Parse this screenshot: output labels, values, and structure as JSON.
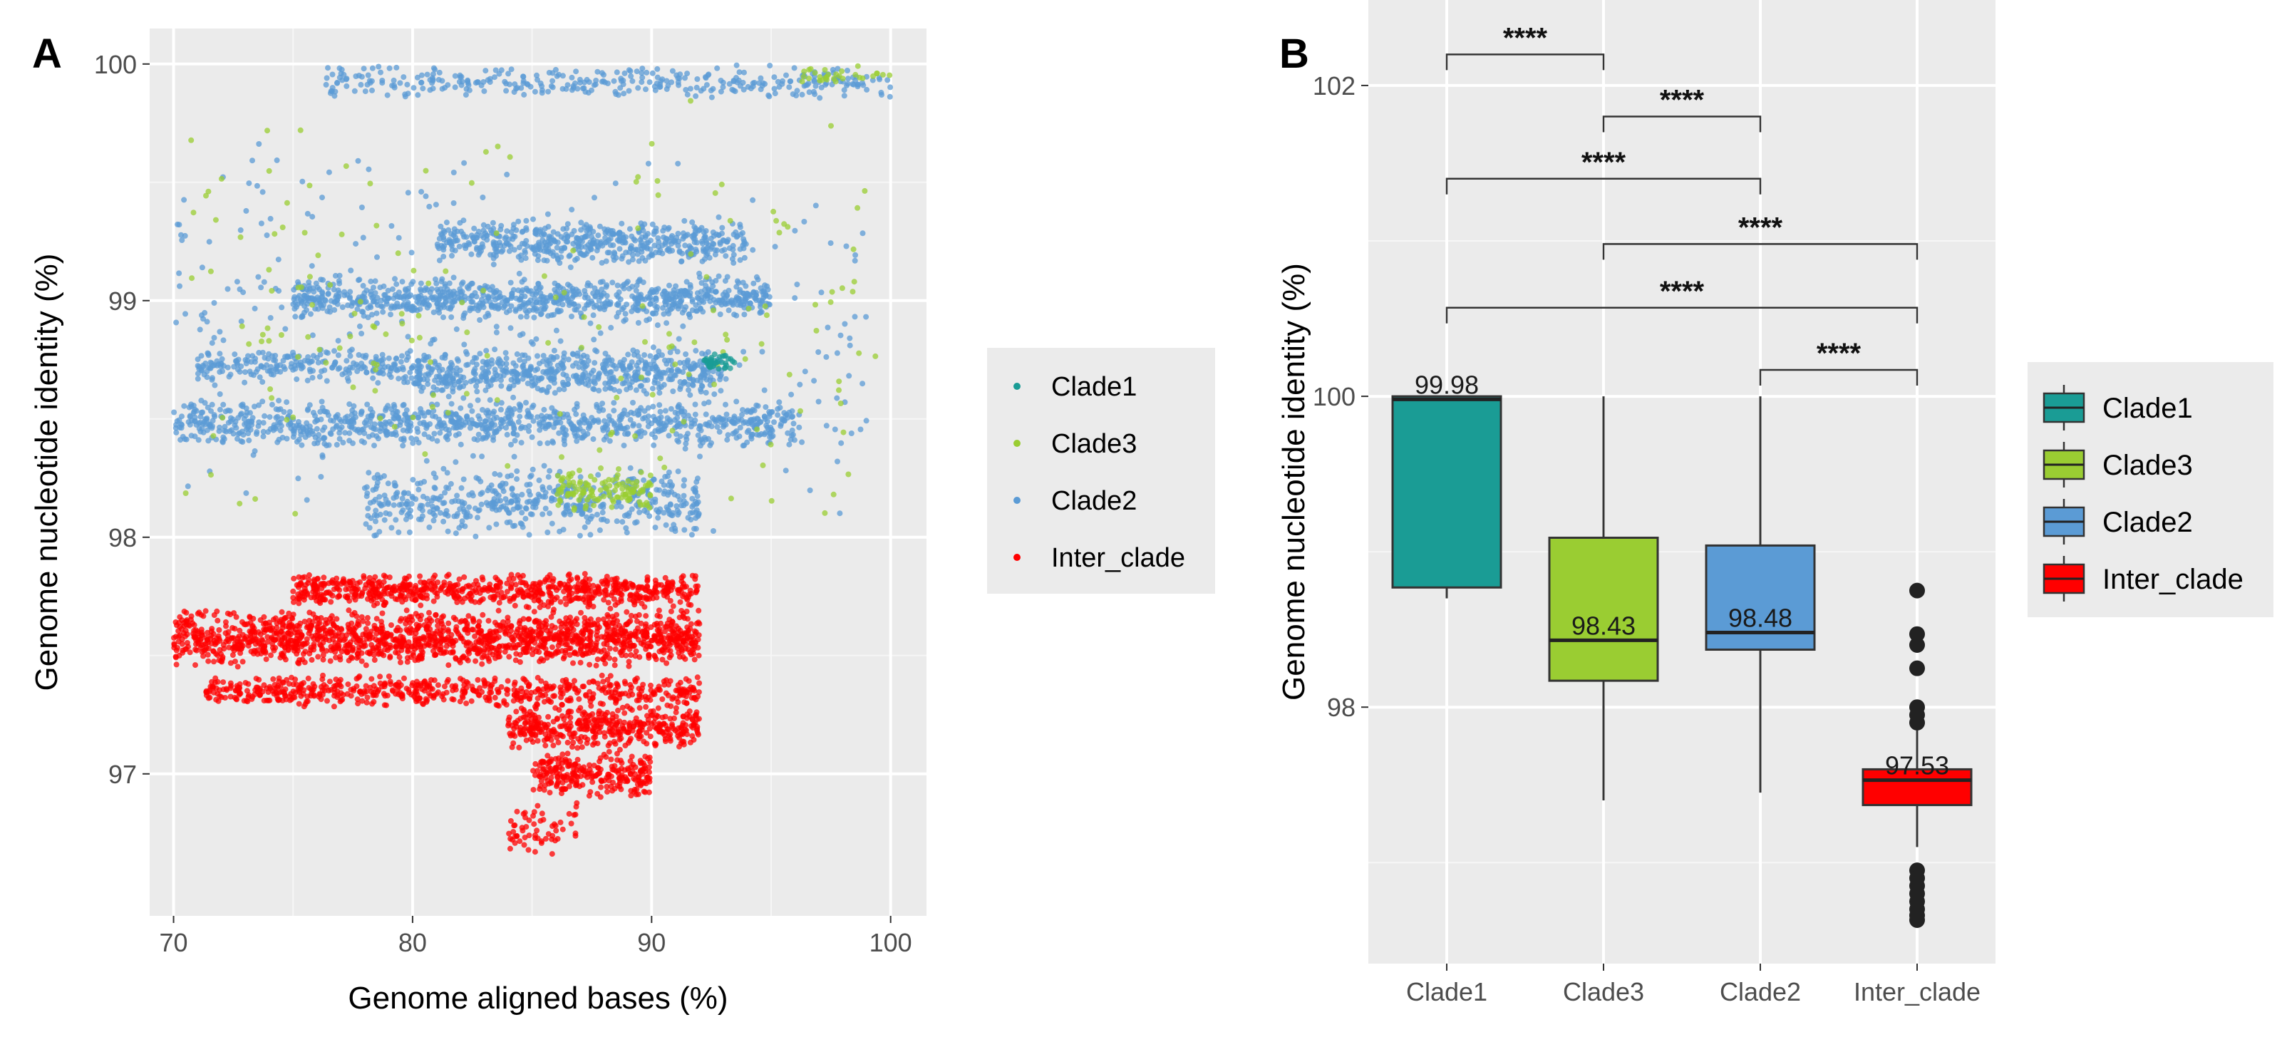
{
  "chart_data": [
    {
      "panel": "A",
      "type": "scatter",
      "xlabel": "Genome aligned bases (%)",
      "ylabel": "Genome nucleotide identity (%)",
      "xlim": [
        69,
        101.5
      ],
      "ylim": [
        96.4,
        100.15
      ],
      "xticks": [
        "70",
        "80",
        "90",
        "100"
      ],
      "yticks": [
        "97",
        "98",
        "99",
        "100"
      ],
      "grid": true,
      "legend_position": "right",
      "series": [
        {
          "name": "Clade1",
          "color": "#1a9c95",
          "clusters": [
            {
              "x": [
                92.2,
                93.5
              ],
              "y": [
                98.7,
                98.78
              ],
              "n": 40
            }
          ]
        },
        {
          "name": "Clade3",
          "color": "#9acd32",
          "clusters": [
            {
              "x": [
                70.5,
                99.5
              ],
              "y": [
                97.85,
                99.95
              ],
              "n": 180
            },
            {
              "x": [
                86,
                90
              ],
              "y": [
                98.1,
                98.3
              ],
              "n": 120
            },
            {
              "x": [
                96,
                100
              ],
              "y": [
                99.92,
                100.0
              ],
              "n": 30
            }
          ]
        },
        {
          "name": "Clade2",
          "color": "#5b9bd5",
          "clusters": [
            {
              "x": [
                70,
                96
              ],
              "y": [
                98.38,
                98.58
              ],
              "n": 900
            },
            {
              "x": [
                75,
                95
              ],
              "y": [
                98.92,
                99.1
              ],
              "n": 800
            },
            {
              "x": [
                81,
                94
              ],
              "y": [
                99.15,
                99.35
              ],
              "n": 500
            },
            {
              "x": [
                71,
                93
              ],
              "y": [
                98.65,
                98.8
              ],
              "n": 500
            },
            {
              "x": [
                78,
                92
              ],
              "y": [
                98.0,
                98.3
              ],
              "n": 500
            },
            {
              "x": [
                80,
                93
              ],
              "y": [
                98.6,
                98.72
              ],
              "n": 250
            },
            {
              "x": [
                76,
                100
              ],
              "y": [
                99.85,
                100.0
              ],
              "n": 350
            },
            {
              "x": [
                70,
                99
              ],
              "y": [
                98.0,
                99.7
              ],
              "n": 400
            }
          ]
        },
        {
          "name": "Inter_clade",
          "color": "#ff0000",
          "clusters": [
            {
              "x": [
                70,
                92
              ],
              "y": [
                97.45,
                97.7
              ],
              "n": 1500
            },
            {
              "x": [
                75,
                92
              ],
              "y": [
                97.7,
                97.85
              ],
              "n": 700
            },
            {
              "x": [
                71,
                92
              ],
              "y": [
                97.28,
                97.42
              ],
              "n": 600
            },
            {
              "x": [
                84,
                92
              ],
              "y": [
                97.1,
                97.3
              ],
              "n": 400
            },
            {
              "x": [
                85,
                90
              ],
              "y": [
                96.9,
                97.1
              ],
              "n": 250
            },
            {
              "x": [
                84,
                87
              ],
              "y": [
                96.65,
                96.9
              ],
              "n": 60
            }
          ]
        }
      ]
    },
    {
      "panel": "B",
      "type": "box",
      "xlabel": "",
      "ylabel": "Genome nucleotide identity (%)",
      "ylim": [
        96.35,
        102.55
      ],
      "yticks": [
        "98",
        "100",
        "102"
      ],
      "categories": [
        "Clade1",
        "Clade3",
        "Clade2",
        "Inter_clade"
      ],
      "grid": true,
      "legend_position": "right",
      "boxes": [
        {
          "name": "Clade1",
          "color": "#1a9c95",
          "whisker_low": 98.7,
          "q1": 98.77,
          "median": 99.98,
          "q3": 100.0,
          "whisker_high": 100.0,
          "median_label": "99.98",
          "outliers": []
        },
        {
          "name": "Clade3",
          "color": "#9acd32",
          "whisker_low": 97.4,
          "q1": 98.17,
          "median": 98.43,
          "q3": 99.09,
          "whisker_high": 100.0,
          "median_label": "98.43",
          "outliers": []
        },
        {
          "name": "Clade2",
          "color": "#5b9bd5",
          "whisker_low": 97.45,
          "q1": 98.37,
          "median": 98.48,
          "q3": 99.04,
          "whisker_high": 100.0,
          "median_label": "98.48",
          "outliers": []
        },
        {
          "name": "Inter_clade",
          "color": "#ff0000",
          "whisker_low": 97.1,
          "q1": 97.37,
          "median": 97.53,
          "q3": 97.6,
          "whisker_high": 97.85,
          "median_label": "97.53",
          "outliers": [
            98.75,
            98.47,
            98.4,
            98.25,
            98.0,
            97.95,
            97.9,
            96.95,
            96.9,
            96.85,
            96.8,
            96.75,
            96.7,
            96.66,
            96.63
          ]
        }
      ],
      "significance": [
        {
          "from": "Clade1",
          "to": "Clade3",
          "y": 102.2,
          "label": "****"
        },
        {
          "from": "Clade3",
          "to": "Clade2",
          "y": 101.8,
          "label": "****"
        },
        {
          "from": "Clade1",
          "to": "Clade2",
          "y": 101.4,
          "label": "****"
        },
        {
          "from": "Clade3",
          "to": "Inter_clade",
          "y": 100.98,
          "label": "****"
        },
        {
          "from": "Clade1",
          "to": "Inter_clade",
          "y": 100.57,
          "label": "****"
        },
        {
          "from": "Clade2",
          "to": "Inter_clade",
          "y": 100.17,
          "label": "****"
        }
      ]
    }
  ]
}
